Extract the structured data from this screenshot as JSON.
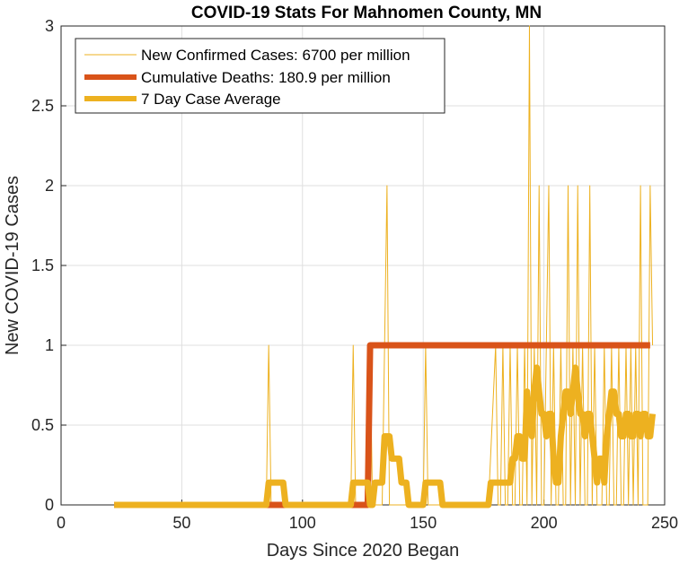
{
  "chart_data": {
    "type": "line",
    "title": "COVID-19 Stats For Mahnomen County, MN",
    "xlabel": "Days Since 2020 Began",
    "ylabel": "New COVID-19 Cases",
    "xlim": [
      0,
      250
    ],
    "ylim": [
      0,
      3
    ],
    "xticks": [
      0,
      50,
      100,
      150,
      200,
      250
    ],
    "xtick_labels": [
      "0",
      "50",
      "100",
      "150",
      "200",
      "250"
    ],
    "yticks": [
      0,
      0.5,
      1,
      1.5,
      2,
      2.5,
      3
    ],
    "ytick_labels": [
      "0",
      "0.5",
      "1",
      "1.5",
      "2",
      "2.5",
      "3"
    ],
    "grid": true,
    "legend_position": "top-left",
    "series": [
      {
        "name": "New Confirmed Cases: 6700 per million",
        "color": "#EDB120",
        "style": "thin",
        "x": [
          22,
          85,
          86,
          87,
          120,
          121,
          122,
          127,
          128,
          129,
          130,
          133,
          134,
          135,
          136,
          137,
          145,
          150,
          151,
          152,
          177,
          180,
          181,
          182,
          183,
          184,
          185,
          186,
          187,
          188,
          189,
          190,
          191,
          192,
          193,
          194,
          195,
          196,
          197,
          198,
          199,
          200,
          201,
          202,
          203,
          204,
          205,
          206,
          207,
          208,
          209,
          210,
          211,
          212,
          213,
          214,
          215,
          216,
          217,
          218,
          219,
          220,
          221,
          222,
          223,
          224,
          225,
          226,
          227,
          228,
          229,
          230,
          231,
          232,
          233,
          234,
          235,
          236,
          237,
          238,
          239,
          240,
          241,
          242,
          243,
          244,
          245
        ],
        "y": [
          0,
          0,
          1,
          0,
          0,
          1,
          0,
          0,
          1,
          0,
          0,
          0,
          1,
          2,
          0,
          0,
          0,
          0,
          1,
          0,
          0,
          1,
          0,
          0,
          1,
          0,
          0,
          1,
          0,
          0,
          1,
          0,
          0,
          1,
          0,
          3,
          0,
          1,
          0,
          2,
          0,
          0,
          1,
          2,
          0,
          1,
          0,
          0,
          1,
          0,
          0,
          2,
          0,
          1,
          0,
          2,
          0,
          1,
          0,
          0,
          2,
          0,
          1,
          0,
          0,
          0,
          1,
          0,
          0,
          1,
          0,
          0,
          1,
          0,
          0,
          1,
          0,
          1,
          0,
          1,
          0,
          2,
          0,
          0,
          0,
          2,
          1
        ]
      },
      {
        "name": "Cumulative Deaths: 180.9 per million",
        "color": "#D95319",
        "style": "thick",
        "x": [
          22,
          126,
          127,
          128,
          244
        ],
        "y": [
          0,
          0,
          0,
          1,
          1
        ]
      },
      {
        "name": "7 Day Case Average",
        "color": "#EDB120",
        "style": "thick",
        "x": [
          22,
          85,
          86,
          92,
          93,
          120,
          121,
          127,
          128,
          129,
          130,
          133,
          134,
          136,
          137,
          140,
          141,
          143,
          144,
          150,
          151,
          157,
          158,
          177,
          178,
          186,
          187,
          188,
          189,
          190,
          191,
          192,
          193,
          194,
          195,
          196,
          197,
          198,
          199,
          200,
          201,
          202,
          203,
          204,
          205,
          206,
          207,
          208,
          209,
          210,
          211,
          212,
          213,
          214,
          215,
          216,
          217,
          218,
          219,
          220,
          221,
          222,
          223,
          224,
          225,
          226,
          227,
          228,
          229,
          230,
          231,
          232,
          233,
          234,
          235,
          236,
          237,
          238,
          239,
          240,
          241,
          242,
          243,
          244,
          245
        ],
        "y": [
          0,
          0,
          0.14,
          0.14,
          0,
          0,
          0.14,
          0.14,
          0,
          0,
          0.14,
          0.14,
          0.43,
          0.43,
          0.29,
          0.29,
          0.14,
          0.14,
          0,
          0,
          0.14,
          0.14,
          0,
          0,
          0.14,
          0.14,
          0.29,
          0.29,
          0.43,
          0.43,
          0.29,
          0.29,
          0.71,
          0.57,
          0.43,
          0.71,
          0.86,
          0.71,
          0.57,
          0.57,
          0.43,
          0.57,
          0.57,
          0.29,
          0.14,
          0.14,
          0.43,
          0.57,
          0.71,
          0.71,
          0.57,
          0.71,
          0.86,
          0.71,
          0.57,
          0.57,
          0.43,
          0.57,
          0.57,
          0.43,
          0.29,
          0.14,
          0.29,
          0.29,
          0.14,
          0.43,
          0.57,
          0.71,
          0.71,
          0.57,
          0.57,
          0.43,
          0.43,
          0.57,
          0.57,
          0.43,
          0.43,
          0.57,
          0.57,
          0.43,
          0.57,
          0.57,
          0.43,
          0.43,
          0.57
        ]
      }
    ]
  }
}
